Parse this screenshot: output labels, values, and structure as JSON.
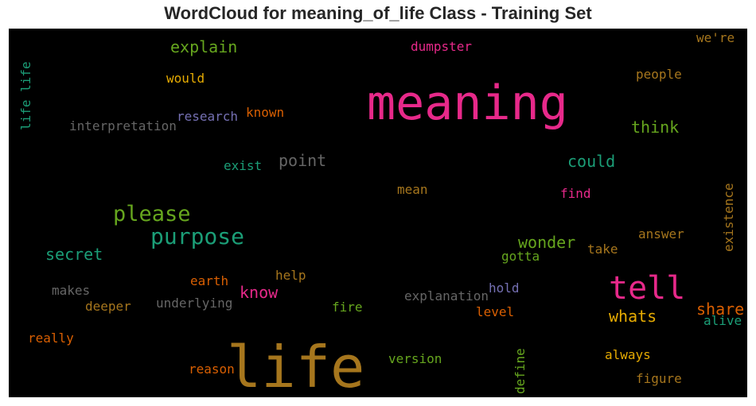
{
  "title": "WordCloud for meaning_of_life Class - Training Set",
  "colors": {
    "background": "#000000",
    "pink": "#e7298a",
    "olive_brown": "#a6761d",
    "green": "#66a61e",
    "teal": "#1b9e77",
    "orange": "#d95f02",
    "gray": "#666666",
    "gold": "#e6ab02",
    "purple": "#7570b3"
  },
  "words": {
    "meaning": "meaning",
    "life": "life",
    "tell": "tell",
    "purpose": "purpose",
    "please": "please",
    "secret": "secret",
    "explain": "explain",
    "life_life": "life life",
    "would": "would",
    "dumpster": "dumpster",
    "were": "we're",
    "people": "people",
    "research": "research",
    "known": "known",
    "interpretation": "interpretation",
    "think": "think",
    "point": "point",
    "exist": "exist",
    "could": "could",
    "mean": "mean",
    "find": "find",
    "existence": "existence",
    "wonder": "wonder",
    "answer": "answer",
    "gotta": "gotta",
    "take": "take",
    "makes": "makes",
    "earth": "earth",
    "help": "help",
    "know": "know",
    "hold": "hold",
    "explanation": "explanation",
    "share": "share",
    "deeper": "deeper",
    "underlying": "underlying",
    "fire": "fire",
    "level": "level",
    "whats": "whats",
    "alive": "alive",
    "really": "really",
    "version": "version",
    "always": "always",
    "define": "define",
    "reason": "reason",
    "figure": "figure"
  }
}
